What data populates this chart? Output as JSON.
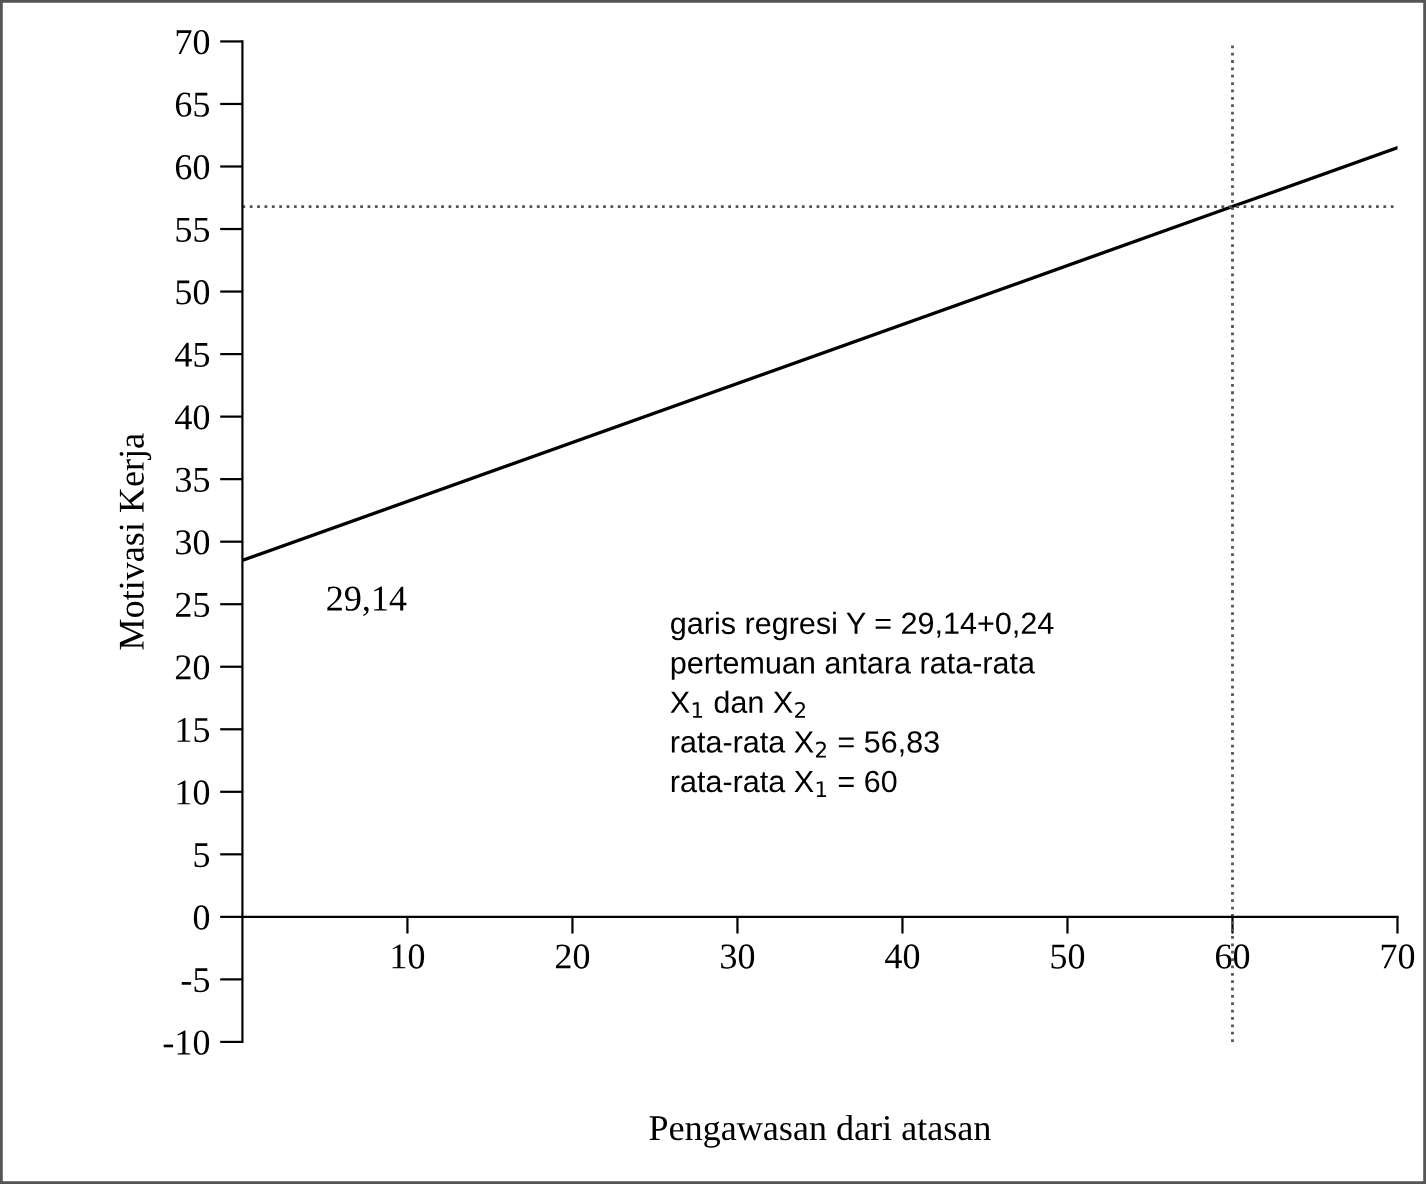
{
  "chart_data": {
    "type": "line",
    "xlabel": "Pengawasan dari atasan",
    "ylabel": "Motivasi Kerja",
    "series": [
      {
        "color": "#000000",
        "x": [
          0,
          60,
          70
        ],
        "values": [
          28.5,
          56.8,
          61.5
        ]
      }
    ],
    "xlim": [
      0,
      70
    ],
    "xticks": [
      10,
      20,
      30,
      40,
      50,
      60,
      70
    ],
    "ylim": [
      -10,
      70
    ],
    "yticks": [
      -10,
      -5,
      0,
      5,
      10,
      15,
      20,
      25,
      30,
      35,
      40,
      45,
      50,
      55,
      60,
      65,
      70
    ],
    "ref_lines": [
      {
        "axis": "y",
        "value": 56.8,
        "color": "#555555",
        "line_style": "dotted"
      },
      {
        "axis": "x",
        "value": 60,
        "color": "#555555",
        "line_style": "dotted"
      }
    ],
    "annotations": [
      {
        "text": "29,14",
        "x": 0,
        "y": 28.5
      },
      "garis regresi Y = 29,14+0,24\npertemuan antara rata-rata\nX$_{1}$ dan X$_{2}$\nrata-rata X$_{2}$ = 56,83\nrata-rata X$_{1}$ = 60"
    ],
    "grid": false,
    "legend": false,
    "marker": "none",
    "line_style": "solid"
  }
}
